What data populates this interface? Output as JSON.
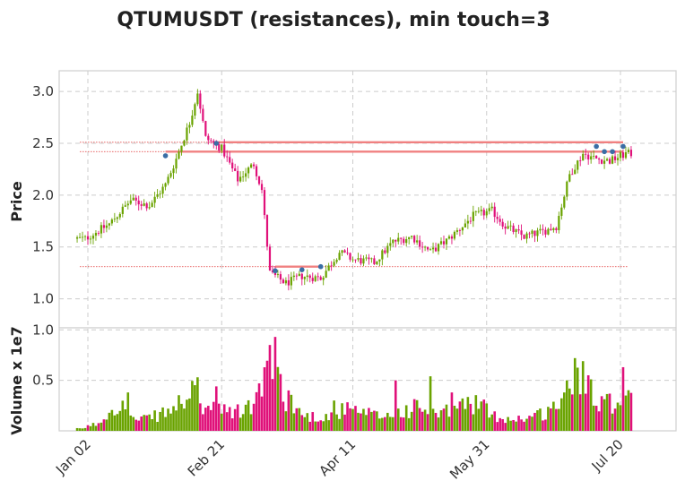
{
  "chart_data": {
    "type": "candlestick",
    "title": "QTUMUSDT (resistances), min touch=3",
    "price_panel": {
      "ylabel": "Price",
      "ylim": [
        0.72,
        3.2
      ],
      "yticks": [
        1.0,
        1.5,
        2.0,
        2.5,
        3.0
      ],
      "ytick_labels": [
        "1.0",
        "1.5",
        "2.0",
        "2.5",
        "3.0"
      ],
      "grid": true
    },
    "volume_panel": {
      "ylabel": "Volume x 1e7",
      "ylim": [
        0,
        1.02
      ],
      "yticks": [
        0.5,
        1.0
      ],
      "ytick_labels": [
        "0.5",
        "1.0"
      ],
      "grid": true
    },
    "x_axis": {
      "start_date": "2021-12-29",
      "end_date": "2022-07-24",
      "tick_dates": [
        "2022-01-02",
        "2022-02-21",
        "2022-04-11",
        "2022-05-31",
        "2022-07-20"
      ],
      "tick_labels": [
        "Jan 02",
        "Feb 21",
        "Apr 11",
        "May 31",
        "Jul 20"
      ]
    },
    "colors": {
      "up": "#6aa300",
      "down": "#e0117a",
      "resistance_line": "#f08080",
      "level_dotted": "#e03030",
      "touch_marker": "#3a6ea5",
      "grid": "#cccccc",
      "frame": "#cfcfcf"
    },
    "price_keypoints": [
      [
        "2022-01-01",
        1.58
      ],
      [
        "2022-01-10",
        1.72
      ],
      [
        "2022-01-18",
        1.95
      ],
      [
        "2022-01-25",
        1.9
      ],
      [
        "2022-01-31",
        2.1
      ],
      [
        "2022-02-04",
        2.35
      ],
      [
        "2022-02-09",
        2.7
      ],
      [
        "2022-02-12",
        3.0
      ],
      [
        "2022-02-15",
        2.55
      ],
      [
        "2022-02-21",
        2.45
      ],
      [
        "2022-02-27",
        2.15
      ],
      [
        "2022-03-05",
        2.3
      ],
      [
        "2022-03-08",
        2.05
      ],
      [
        "2022-03-11",
        1.25
      ],
      [
        "2022-03-17",
        1.15
      ],
      [
        "2022-03-23",
        1.22
      ],
      [
        "2022-03-30",
        1.2
      ],
      [
        "2022-04-06",
        1.45
      ],
      [
        "2022-04-11",
        1.38
      ],
      [
        "2022-04-19",
        1.35
      ],
      [
        "2022-04-26",
        1.55
      ],
      [
        "2022-05-03",
        1.6
      ],
      [
        "2022-05-10",
        1.45
      ],
      [
        "2022-05-17",
        1.58
      ],
      [
        "2022-05-26",
        1.8
      ],
      [
        "2022-06-02",
        1.85
      ],
      [
        "2022-06-07",
        1.7
      ],
      [
        "2022-06-14",
        1.6
      ],
      [
        "2022-06-21",
        1.65
      ],
      [
        "2022-06-26",
        1.7
      ],
      [
        "2022-07-01",
        2.2
      ],
      [
        "2022-07-06",
        2.4
      ],
      [
        "2022-07-11",
        2.35
      ],
      [
        "2022-07-16",
        2.33
      ],
      [
        "2022-07-22",
        2.4
      ]
    ],
    "volume_keypoints": [
      [
        "2021-12-30",
        0.02
      ],
      [
        "2022-01-06",
        0.08
      ],
      [
        "2022-01-13",
        0.3
      ],
      [
        "2022-01-20",
        0.1
      ],
      [
        "2022-01-27",
        0.15
      ],
      [
        "2022-02-03",
        0.22
      ],
      [
        "2022-02-09",
        0.4
      ],
      [
        "2022-02-14",
        0.25
      ],
      [
        "2022-02-21",
        0.2
      ],
      [
        "2022-02-28",
        0.2
      ],
      [
        "2022-03-06",
        0.3
      ],
      [
        "2022-03-11",
        0.8
      ],
      [
        "2022-03-17",
        0.35
      ],
      [
        "2022-03-24",
        0.15
      ],
      [
        "2022-04-01",
        0.15
      ],
      [
        "2022-04-08",
        0.22
      ],
      [
        "2022-04-15",
        0.18
      ],
      [
        "2022-04-22",
        0.15
      ],
      [
        "2022-04-29",
        0.2
      ],
      [
        "2022-05-06",
        0.25
      ],
      [
        "2022-05-13",
        0.15
      ],
      [
        "2022-05-20",
        0.25
      ],
      [
        "2022-05-27",
        0.3
      ],
      [
        "2022-06-03",
        0.15
      ],
      [
        "2022-06-10",
        0.12
      ],
      [
        "2022-06-17",
        0.15
      ],
      [
        "2022-06-23",
        0.2
      ],
      [
        "2022-06-30",
        0.4
      ],
      [
        "2022-07-06",
        0.6
      ],
      [
        "2022-07-12",
        0.35
      ],
      [
        "2022-07-17",
        0.3
      ],
      [
        "2022-07-22",
        0.35
      ]
    ],
    "volume_spikes": [
      [
        "2022-01-17",
        0.38
      ],
      [
        "2022-02-12",
        0.53
      ],
      [
        "2022-02-19",
        0.44
      ],
      [
        "2022-03-08",
        0.34
      ],
      [
        "2022-03-11",
        0.85
      ],
      [
        "2022-03-13",
        0.93
      ],
      [
        "2022-03-18",
        0.4
      ],
      [
        "2022-04-04",
        0.3
      ],
      [
        "2022-04-27",
        0.5
      ],
      [
        "2022-05-10",
        0.54
      ],
      [
        "2022-05-18",
        0.38
      ],
      [
        "2022-06-30",
        0.5
      ],
      [
        "2022-07-03",
        0.72
      ],
      [
        "2022-07-06",
        0.69
      ],
      [
        "2022-07-08",
        0.55
      ],
      [
        "2022-07-21",
        0.63
      ]
    ],
    "resistance_levels": [
      {
        "price": 2.51,
        "from": "2022-02-19",
        "to": "2022-07-21",
        "line": "solid",
        "dotted_from": "2021-12-30"
      },
      {
        "price": 2.42,
        "from": "2022-01-31",
        "to": "2022-07-21",
        "line": "solid",
        "dotted_from": "2021-12-30"
      },
      {
        "price": 1.31,
        "from": "2022-03-13",
        "to": "2022-03-30",
        "line": "solid",
        "dotted_from": "2021-12-30",
        "dotted_to": "2022-07-23"
      }
    ],
    "touch_points": [
      [
        "2022-01-31",
        2.38
      ],
      [
        "2022-02-19",
        2.5
      ],
      [
        "2022-03-13",
        1.27
      ],
      [
        "2022-03-23",
        1.28
      ],
      [
        "2022-03-30",
        1.31
      ],
      [
        "2022-07-11",
        2.47
      ],
      [
        "2022-07-14",
        2.42
      ],
      [
        "2022-07-17",
        2.42
      ],
      [
        "2022-07-21",
        2.47
      ]
    ]
  }
}
